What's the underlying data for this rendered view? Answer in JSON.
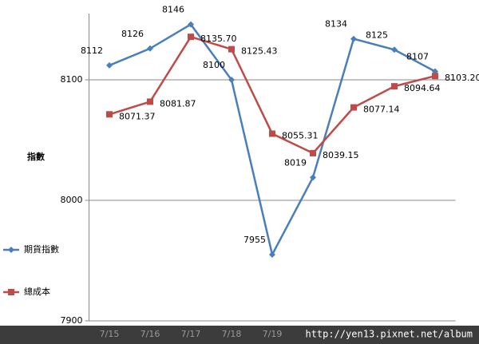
{
  "chart_data": {
    "type": "line",
    "y_label": "指數",
    "categories": [
      "7/15",
      "7/16",
      "7/17",
      "7/18",
      "7/19",
      null,
      null,
      null,
      null
    ],
    "series": [
      {
        "name": "期貨指數",
        "color": "#4a7ebb",
        "marker": "diamond",
        "values": [
          8112,
          8126,
          8146,
          8100,
          7955,
          8019,
          8134,
          8125,
          8107
        ]
      },
      {
        "name": "總成本",
        "color": "#be4b48",
        "marker": "square",
        "values": [
          8071.37,
          8081.87,
          8135.7,
          8125.43,
          8055.31,
          8039.15,
          8077.14,
          8094.64,
          8103.2
        ],
        "value_labels": [
          "8071.37",
          "8081.87",
          "8135.70",
          "8125.43",
          "8055.31",
          "8039.15",
          "8077.14",
          "8094.64",
          "8103.20"
        ]
      }
    ],
    "ylim": [
      7900,
      8155
    ],
    "yticks": [
      7900,
      8000,
      8100
    ],
    "grid": true,
    "watermark": "http://yen13.pixnet.net/album"
  }
}
